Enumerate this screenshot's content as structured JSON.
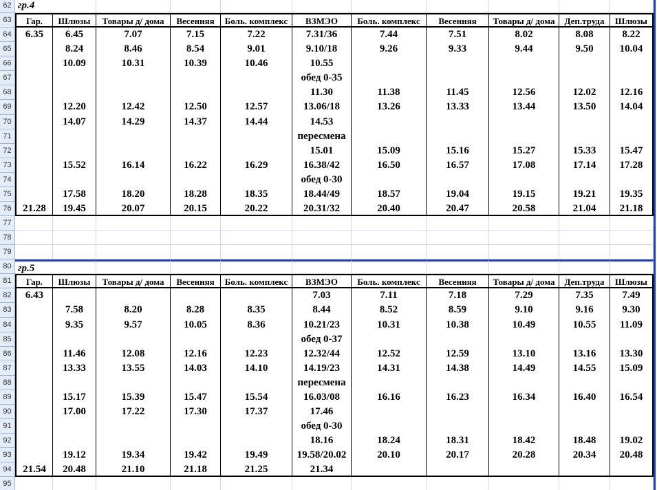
{
  "rows": [
    {
      "n": 62,
      "cells": [
        "гр.4"
      ]
    },
    {
      "n": 63,
      "cells": [
        "Гар.",
        "Шлюзы",
        "Товары д/ дома",
        "Весенняя",
        "Боль. комплекс",
        "ВЗМЭО",
        "Боль. комплекс",
        "Весенняя",
        "Товары д/ дома",
        "Деп.труда",
        "Шлюзы"
      ]
    },
    {
      "n": 64,
      "cells": [
        "6.35",
        "6.45",
        "7.07",
        "7.15",
        "7.22",
        "7.31/36",
        "7.44",
        "7.51",
        "8.02",
        "8.08",
        "8.22"
      ]
    },
    {
      "n": 65,
      "cells": [
        null,
        "8.24",
        "8.46",
        "8.54",
        "9.01",
        "9.10/18",
        "9.26",
        "9.33",
        "9.44",
        "9.50",
        "10.04"
      ]
    },
    {
      "n": 66,
      "cells": [
        null,
        "10.09",
        "10.31",
        "10.39",
        "10.46",
        "10.55"
      ]
    },
    {
      "n": 67,
      "cells": [
        null,
        null,
        null,
        null,
        null,
        "обед 0-35"
      ]
    },
    {
      "n": 68,
      "cells": [
        null,
        null,
        null,
        null,
        null,
        "11.30",
        "11.38",
        "11.45",
        "12.56",
        "12.02",
        "12.16"
      ]
    },
    {
      "n": 69,
      "cells": [
        null,
        "12.20",
        "12.42",
        "12.50",
        "12.57",
        "13.06/18",
        "13.26",
        "13.33",
        "13.44",
        "13.50",
        "14.04"
      ]
    },
    {
      "n": 70,
      "cells": [
        null,
        "14.07",
        "14.29",
        "14.37",
        "14.44",
        "14.53"
      ]
    },
    {
      "n": 71,
      "cells": [
        null,
        null,
        null,
        null,
        null,
        "пересмена"
      ]
    },
    {
      "n": 72,
      "cells": [
        null,
        null,
        null,
        null,
        null,
        "15.01",
        "15.09",
        "15.16",
        "15.27",
        "15.33",
        "15.47"
      ]
    },
    {
      "n": 73,
      "cells": [
        null,
        "15.52",
        "16.14",
        "16.22",
        "16.29",
        "16.38/42",
        "16.50",
        "16.57",
        "17.08",
        "17.14",
        "17.28"
      ]
    },
    {
      "n": 74,
      "cells": [
        null,
        null,
        null,
        null,
        null,
        "обед 0-30"
      ]
    },
    {
      "n": 75,
      "cells": [
        null,
        "17.58",
        "18.20",
        "18.28",
        "18.35",
        "18.44/49",
        "18.57",
        "19.04",
        "19.15",
        "19.21",
        "19.35"
      ]
    },
    {
      "n": 76,
      "cells": [
        "21.28",
        "19.45",
        "20.07",
        "20.15",
        "20.22",
        "20.31/32",
        "20.40",
        "20.47",
        "20.58",
        "21.04",
        "21.18"
      ]
    },
    {
      "n": 77,
      "cells": []
    },
    {
      "n": 78,
      "cells": []
    },
    {
      "n": 79,
      "cells": []
    },
    {
      "n": 80,
      "cells": [
        "гр.5"
      ]
    },
    {
      "n": 81,
      "cells": [
        "Гар.",
        "Шлюзы",
        "Товары д/ дома",
        "Весенняя",
        "Боль. комплекс",
        "ВЗМЭО",
        "Боль. комплекс",
        "Весенняя",
        "Товары д/ дома",
        "Деп.труда",
        "Шлюзы"
      ]
    },
    {
      "n": 82,
      "cells": [
        "6.43",
        null,
        null,
        null,
        null,
        "7.03",
        "7.11",
        "7.18",
        "7.29",
        "7.35",
        "7.49"
      ]
    },
    {
      "n": 83,
      "cells": [
        null,
        "7.58",
        "8.20",
        "8.28",
        "8.35",
        "8.44",
        "8.52",
        "8.59",
        "9.10",
        "9.16",
        "9.30"
      ]
    },
    {
      "n": 84,
      "cells": [
        null,
        "9.35",
        "9.57",
        "10.05",
        "8.36",
        "10.21/23",
        "10.31",
        "10.38",
        "10.49",
        "10.55",
        "11.09"
      ]
    },
    {
      "n": 85,
      "cells": [
        null,
        null,
        null,
        null,
        null,
        "обед 0-37"
      ]
    },
    {
      "n": 86,
      "cells": [
        null,
        "11.46",
        "12.08",
        "12.16",
        "12.23",
        "12.32/44",
        "12.52",
        "12.59",
        "13.10",
        "13.16",
        "13.30"
      ]
    },
    {
      "n": 87,
      "cells": [
        null,
        "13.33",
        "13.55",
        "14.03",
        "14.10",
        "14.19/23",
        "14.31",
        "14.38",
        "14.49",
        "14.55",
        "15.09"
      ]
    },
    {
      "n": 88,
      "cells": [
        null,
        null,
        null,
        null,
        null,
        "пересмена"
      ]
    },
    {
      "n": 89,
      "cells": [
        null,
        "15.17",
        "15.39",
        "15.47",
        "15.54",
        "16.03/08",
        "16.16",
        "16.23",
        "16.34",
        "16.40",
        "16.54"
      ]
    },
    {
      "n": 90,
      "cells": [
        null,
        "17.00",
        "17.22",
        "17.30",
        "17.37",
        "17.46"
      ]
    },
    {
      "n": 91,
      "cells": [
        null,
        null,
        null,
        null,
        null,
        "обед 0-30"
      ]
    },
    {
      "n": 92,
      "cells": [
        null,
        null,
        null,
        null,
        null,
        "18.16",
        "18.24",
        "18.31",
        "18.42",
        "18.48",
        "19.02"
      ]
    },
    {
      "n": 93,
      "cells": [
        null,
        "19.12",
        "19.34",
        "19.42",
        "19.49",
        "19.58/20.02",
        "20.10",
        "20.17",
        "20.28",
        "20.34",
        "20.48"
      ]
    },
    {
      "n": 94,
      "cells": [
        "21.54",
        "20.48",
        "21.10",
        "21.18",
        "21.25",
        "21.34"
      ]
    },
    {
      "n": 95,
      "cells": []
    }
  ]
}
